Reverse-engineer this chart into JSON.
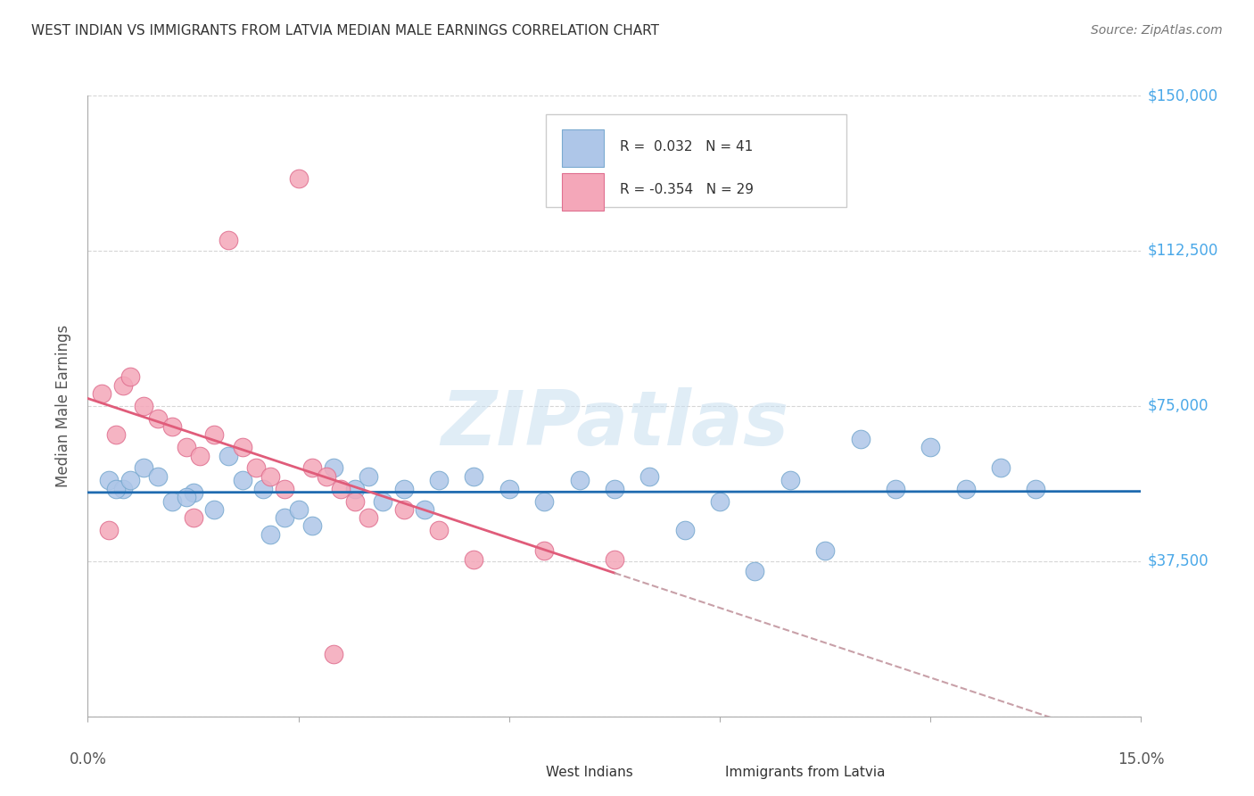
{
  "title": "WEST INDIAN VS IMMIGRANTS FROM LATVIA MEDIAN MALE EARNINGS CORRELATION CHART",
  "source": "Source: ZipAtlas.com",
  "ylabel": "Median Male Earnings",
  "yticks": [
    0,
    37500,
    75000,
    112500,
    150000
  ],
  "ytick_labels": [
    "",
    "$37,500",
    "$75,000",
    "$112,500",
    "$150,000"
  ],
  "xlim": [
    0.0,
    15.0
  ],
  "ylim": [
    0,
    150000
  ],
  "legend_label_blue": "West Indians",
  "legend_label_pink": "Immigrants from Latvia",
  "blue_dots": [
    [
      0.3,
      57000
    ],
    [
      0.5,
      55000
    ],
    [
      0.8,
      60000
    ],
    [
      1.0,
      58000
    ],
    [
      1.2,
      52000
    ],
    [
      1.5,
      54000
    ],
    [
      1.8,
      50000
    ],
    [
      2.0,
      63000
    ],
    [
      2.2,
      57000
    ],
    [
      2.5,
      55000
    ],
    [
      2.8,
      48000
    ],
    [
      3.0,
      50000
    ],
    [
      3.2,
      46000
    ],
    [
      3.5,
      60000
    ],
    [
      3.8,
      55000
    ],
    [
      4.0,
      58000
    ],
    [
      4.2,
      52000
    ],
    [
      4.5,
      55000
    ],
    [
      4.8,
      50000
    ],
    [
      5.0,
      57000
    ],
    [
      5.5,
      58000
    ],
    [
      6.0,
      55000
    ],
    [
      6.5,
      52000
    ],
    [
      7.0,
      57000
    ],
    [
      7.5,
      55000
    ],
    [
      8.0,
      58000
    ],
    [
      8.5,
      45000
    ],
    [
      9.0,
      52000
    ],
    [
      9.5,
      35000
    ],
    [
      10.0,
      57000
    ],
    [
      10.5,
      40000
    ],
    [
      11.0,
      67000
    ],
    [
      11.5,
      55000
    ],
    [
      12.0,
      65000
    ],
    [
      12.5,
      55000
    ],
    [
      13.0,
      60000
    ],
    [
      13.5,
      55000
    ],
    [
      0.4,
      55000
    ],
    [
      0.6,
      57000
    ],
    [
      1.4,
      53000
    ],
    [
      2.6,
      44000
    ]
  ],
  "pink_dots": [
    [
      0.2,
      78000
    ],
    [
      0.4,
      68000
    ],
    [
      0.5,
      80000
    ],
    [
      0.6,
      82000
    ],
    [
      0.8,
      75000
    ],
    [
      1.0,
      72000
    ],
    [
      1.2,
      70000
    ],
    [
      1.4,
      65000
    ],
    [
      1.6,
      63000
    ],
    [
      1.8,
      68000
    ],
    [
      2.0,
      115000
    ],
    [
      2.2,
      65000
    ],
    [
      2.4,
      60000
    ],
    [
      2.6,
      58000
    ],
    [
      2.8,
      55000
    ],
    [
      3.0,
      130000
    ],
    [
      3.2,
      60000
    ],
    [
      3.4,
      58000
    ],
    [
      3.6,
      55000
    ],
    [
      3.8,
      52000
    ],
    [
      4.0,
      48000
    ],
    [
      4.5,
      50000
    ],
    [
      5.0,
      45000
    ],
    [
      5.5,
      38000
    ],
    [
      6.5,
      40000
    ],
    [
      0.3,
      45000
    ],
    [
      1.5,
      48000
    ],
    [
      3.5,
      15000
    ],
    [
      7.5,
      38000
    ]
  ],
  "blue_scatter_color": "#aec6e8",
  "blue_scatter_edge": "#7aaad0",
  "pink_scatter_color": "#f4a7b9",
  "pink_scatter_edge": "#e07090",
  "blue_line_color": "#1f6bb0",
  "pink_line_color": "#e05c7a",
  "pink_line_dashed_color": "#c8a0a8",
  "watermark": "ZIPatlas",
  "background_color": "#ffffff",
  "grid_color": "#cccccc",
  "title_color": "#333333",
  "right_axis_color": "#4aa8e8"
}
